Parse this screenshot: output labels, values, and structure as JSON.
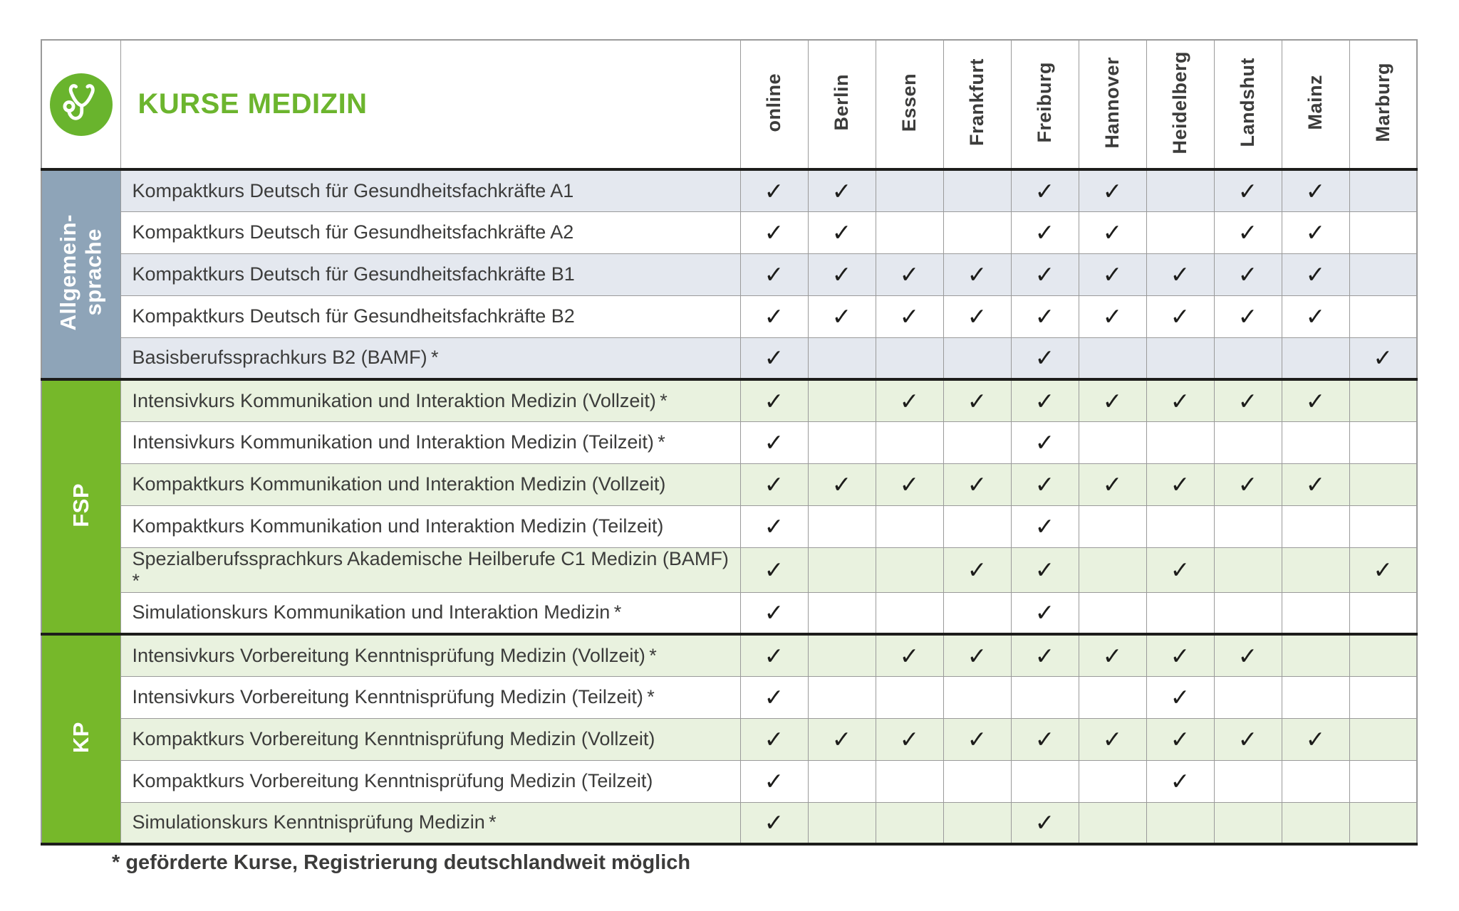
{
  "title": "KURSE MEDIZIN",
  "footnote": "* geförderte Kurse, Registrierung deutschlandweit möglich",
  "check_glyph": "✓",
  "icon": "stethoscope-icon",
  "colors": {
    "brand_green": "#6cb52e",
    "icon_green": "#69b42d",
    "band_green": "#76b82a",
    "band_blue": "#8ea4b8",
    "row_light_blue": "#e4e8ef",
    "row_light_green": "#e9f2df",
    "text_dark": "#3c3c3b",
    "check_dark": "#1d1d1b",
    "grid_gray": "#9a9a9a"
  },
  "columns": [
    "online",
    "Berlin",
    "Essen",
    "Frankfurt",
    "Freiburg",
    "Hannover",
    "Heidelberg",
    "Landshut",
    "Mainz",
    "Marburg"
  ],
  "groups": [
    {
      "id": "allgemeinsprache",
      "label": "Allgemein-\nsprache",
      "band_color": "#8ea4b8",
      "row_shade": "#e4e8ef",
      "rows": [
        {
          "course": "Kompaktkurs Deutsch für Gesundheitsfachkräfte A1",
          "checks": [
            1,
            1,
            0,
            0,
            1,
            1,
            0,
            1,
            1,
            0
          ]
        },
        {
          "course": "Kompaktkurs Deutsch für Gesundheitsfachkräfte A2",
          "checks": [
            1,
            1,
            0,
            0,
            1,
            1,
            0,
            1,
            1,
            0
          ]
        },
        {
          "course": "Kompaktkurs Deutsch für Gesundheitsfachkräfte B1",
          "checks": [
            1,
            1,
            1,
            1,
            1,
            1,
            1,
            1,
            1,
            0
          ]
        },
        {
          "course": "Kompaktkurs Deutsch für Gesundheitsfachkräfte B2",
          "checks": [
            1,
            1,
            1,
            1,
            1,
            1,
            1,
            1,
            1,
            0
          ]
        },
        {
          "course": "Basisberufssprachkurs B2 (BAMF) *",
          "checks": [
            1,
            0,
            0,
            0,
            1,
            0,
            0,
            0,
            0,
            1
          ]
        }
      ]
    },
    {
      "id": "fsp",
      "label": "FSP",
      "band_color": "#76b82a",
      "row_shade": "#e9f2df",
      "rows": [
        {
          "course": "Intensivkurs Kommunikation und Interaktion Medizin (Vollzeit) *",
          "checks": [
            1,
            0,
            1,
            1,
            1,
            1,
            1,
            1,
            1,
            0
          ]
        },
        {
          "course": "Intensivkurs Kommunikation und Interaktion Medizin (Teilzeit) *",
          "checks": [
            1,
            0,
            0,
            0,
            1,
            0,
            0,
            0,
            0,
            0
          ]
        },
        {
          "course": "Kompaktkurs Kommunikation und Interaktion Medizin (Vollzeit)",
          "checks": [
            1,
            1,
            1,
            1,
            1,
            1,
            1,
            1,
            1,
            0
          ]
        },
        {
          "course": "Kompaktkurs Kommunikation und Interaktion Medizin (Teilzeit)",
          "checks": [
            1,
            0,
            0,
            0,
            1,
            0,
            0,
            0,
            0,
            0
          ]
        },
        {
          "course": "Spezialberufssprachkurs Akademische Heilberufe C1 Medizin (BAMF) *",
          "checks": [
            1,
            0,
            0,
            1,
            1,
            0,
            1,
            0,
            0,
            1
          ]
        },
        {
          "course": "Simulationskurs Kommunikation und Interaktion Medizin *",
          "checks": [
            1,
            0,
            0,
            0,
            1,
            0,
            0,
            0,
            0,
            0
          ]
        }
      ]
    },
    {
      "id": "kp",
      "label": "KP",
      "band_color": "#76b82a",
      "row_shade": "#e9f2df",
      "rows": [
        {
          "course": "Intensivkurs Vorbereitung Kenntnisprüfung Medizin (Vollzeit) *",
          "checks": [
            1,
            0,
            1,
            1,
            1,
            1,
            1,
            1,
            0,
            0
          ]
        },
        {
          "course": "Intensivkurs Vorbereitung Kenntnisprüfung Medizin (Teilzeit) *",
          "checks": [
            1,
            0,
            0,
            0,
            0,
            0,
            1,
            0,
            0,
            0
          ]
        },
        {
          "course": "Kompaktkurs Vorbereitung Kenntnisprüfung Medizin (Vollzeit)",
          "checks": [
            1,
            1,
            1,
            1,
            1,
            1,
            1,
            1,
            1,
            0
          ]
        },
        {
          "course": "Kompaktkurs Vorbereitung Kenntnisprüfung Medizin (Teilzeit)",
          "checks": [
            1,
            0,
            0,
            0,
            0,
            0,
            1,
            0,
            0,
            0
          ]
        },
        {
          "course": "Simulationskurs Kenntnisprüfung Medizin *",
          "checks": [
            1,
            0,
            0,
            0,
            1,
            0,
            0,
            0,
            0,
            0
          ]
        }
      ]
    }
  ]
}
